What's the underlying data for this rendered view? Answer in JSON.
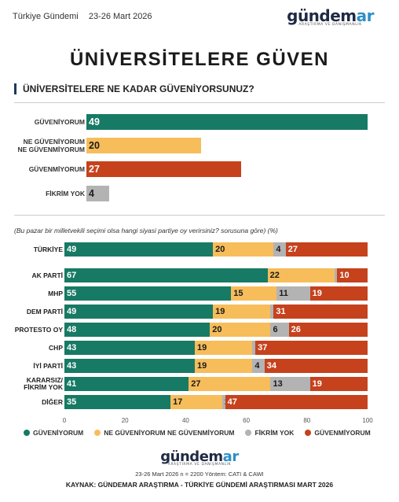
{
  "header": {
    "brand_left": "Türkiye Gündemi",
    "date": "23-26 Mart 2026",
    "logo_main": "gündem",
    "logo_accent": "ar",
    "logo_sub": "ARAŞTIRMA VE DANIŞMANLIK"
  },
  "title": "ÜNİVERSİTELERE GÜVEN",
  "question": "ÜNİVERSİTELERE NE KADAR GÜVENİYORSUNUZ?",
  "colors": {
    "guveniyorum": "#177a64",
    "neutral": "#f7bd5a",
    "fikrim_yok": "#b3b3b3",
    "guvenmiyorum": "#c5421c"
  },
  "chart_data": [
    {
      "type": "bar",
      "title": "ÜNİVERSİTELERE NE KADAR GÜVENİYORSUNUZ?",
      "categories": [
        "GÜVENİYORUM",
        "NE GÜVENİYORUM NE GÜVENMİYORUM",
        "GÜVENMİYORUM",
        "FİKRİM YOK"
      ],
      "values": [
        49,
        20,
        27,
        4
      ],
      "xlim": [
        0,
        49
      ]
    },
    {
      "type": "bar",
      "stacked": true,
      "orientation": "horizontal",
      "note": "(Bu pazar bir milletvekili seçimi olsa hangi siyasi partiye oy verirsiniz? sorusuna göre) (%)",
      "categories": [
        "TÜRKİYE",
        "AK PARTİ",
        "MHP",
        "DEM PARTİ",
        "PROTESTO OY",
        "CHP",
        "İYİ PARTİ",
        "KARARSIZ/ FİKRİM YOK",
        "DİĞER"
      ],
      "series": [
        {
          "name": "GÜVENİYORUM",
          "values": [
            49,
            67,
            55,
            49,
            48,
            43,
            43,
            41,
            35
          ]
        },
        {
          "name": "NE GÜVENİYORUM NE GÜVENMİYORUM",
          "values": [
            20,
            22,
            15,
            19,
            20,
            19,
            19,
            27,
            17
          ]
        },
        {
          "name": "FİKRİM YOK",
          "values": [
            4,
            1,
            11,
            1,
            6,
            1,
            4,
            13,
            1
          ]
        },
        {
          "name": "GÜVENMİYORUM",
          "values": [
            27,
            10,
            19,
            31,
            26,
            37,
            34,
            19,
            47
          ]
        }
      ],
      "xlim": [
        0,
        100
      ],
      "xticks": [
        0,
        20,
        40,
        60,
        80,
        100
      ],
      "legend_position": "bottom"
    }
  ],
  "footer": {
    "logo_main": "gündem",
    "logo_accent": "ar",
    "logo_sub": "ARAŞTIRMA VE DANIŞMANLIK",
    "meta": "23-26 Mart 2026 n = 2200 Yöntem: CATI & CAWI",
    "source": "KAYNAK: GÜNDEMAR ARAŞTIRMA - TÜRKİYE GÜNDEMİ ARAŞTIRMASI MART 2026"
  }
}
